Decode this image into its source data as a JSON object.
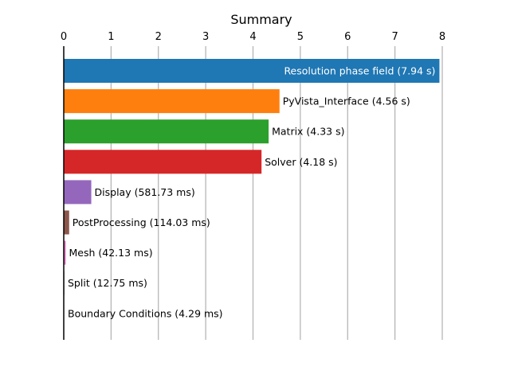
{
  "chart_data": {
    "type": "bar",
    "orientation": "horizontal",
    "title": "Summary",
    "x_axis_position": "top",
    "xlim": [
      0,
      8
    ],
    "x_ticks": [
      0,
      1,
      2,
      3,
      4,
      5,
      6,
      7,
      8
    ],
    "grid": "vertical",
    "bars": [
      {
        "label": "Resolution phase field (7.94 s)",
        "value": 7.94,
        "unit": "s",
        "color": "#1f77b4",
        "label_inside": true
      },
      {
        "label": "PyVista_Interface (4.56 s)",
        "value": 4.56,
        "unit": "s",
        "color": "#ff7f0e",
        "label_inside": false
      },
      {
        "label": "Matrix (4.33 s)",
        "value": 4.33,
        "unit": "s",
        "color": "#2ca02c",
        "label_inside": false
      },
      {
        "label": "Solver (4.18 s)",
        "value": 4.18,
        "unit": "s",
        "color": "#d62728",
        "label_inside": false
      },
      {
        "label": "Display (581.73 ms)",
        "value": 0.58173,
        "unit": "s",
        "color": "#9467bd",
        "label_inside": false
      },
      {
        "label": "PostProcessing (114.03 ms)",
        "value": 0.11403,
        "unit": "s",
        "color": "#8c564b",
        "label_inside": false
      },
      {
        "label": "Mesh (42.13 ms)",
        "value": 0.04213,
        "unit": "s",
        "color": "#e377c2",
        "label_inside": false
      },
      {
        "label": "Split (12.75 ms)",
        "value": 0.01275,
        "unit": "s",
        "color": "#7f7f7f",
        "label_inside": false
      },
      {
        "label": "Boundary Conditions (4.29 ms)",
        "value": 0.00429,
        "unit": "s",
        "color": "#bcbd22",
        "label_inside": false
      }
    ]
  }
}
